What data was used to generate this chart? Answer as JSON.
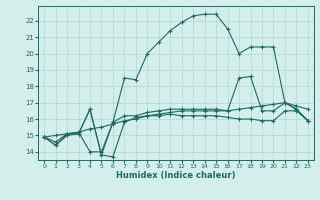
{
  "xlabel": "Humidex (Indice chaleur)",
  "bg_color": "#d4eeeb",
  "grid_color": "#b2d8d4",
  "line_color": "#1a6b60",
  "x_ticks": [
    0,
    1,
    2,
    3,
    4,
    5,
    6,
    7,
    8,
    9,
    10,
    11,
    12,
    13,
    14,
    15,
    16,
    17,
    18,
    19,
    20,
    21,
    22,
    23
  ],
  "ylim": [
    13.5,
    22.9
  ],
  "xlim": [
    -0.5,
    23.5
  ],
  "series": [
    [
      14.9,
      14.4,
      15.1,
      15.1,
      16.6,
      13.8,
      13.7,
      15.8,
      16.1,
      16.2,
      16.2,
      16.3,
      16.2,
      16.2,
      16.2,
      16.2,
      16.1,
      16.0,
      16.0,
      15.9,
      15.9,
      16.5,
      16.5,
      15.9
    ],
    [
      14.9,
      14.6,
      15.1,
      15.2,
      15.4,
      15.5,
      15.7,
      15.9,
      16.0,
      16.2,
      16.3,
      16.4,
      16.5,
      16.5,
      16.5,
      16.5,
      16.5,
      16.6,
      16.7,
      16.8,
      16.9,
      17.0,
      16.8,
      16.6
    ],
    [
      14.9,
      14.4,
      15.0,
      15.1,
      16.6,
      13.8,
      15.8,
      18.5,
      18.4,
      20.0,
      20.7,
      21.4,
      21.9,
      22.3,
      22.4,
      22.4,
      21.5,
      20.0,
      20.4,
      20.4,
      20.4,
      17.0,
      16.6,
      15.9
    ],
    [
      14.9,
      15.0,
      15.1,
      15.2,
      14.0,
      14.0,
      15.8,
      16.2,
      16.2,
      16.4,
      16.5,
      16.6,
      16.6,
      16.6,
      16.6,
      16.6,
      16.5,
      18.5,
      18.6,
      16.5,
      16.5,
      17.0,
      16.6,
      15.9
    ]
  ]
}
